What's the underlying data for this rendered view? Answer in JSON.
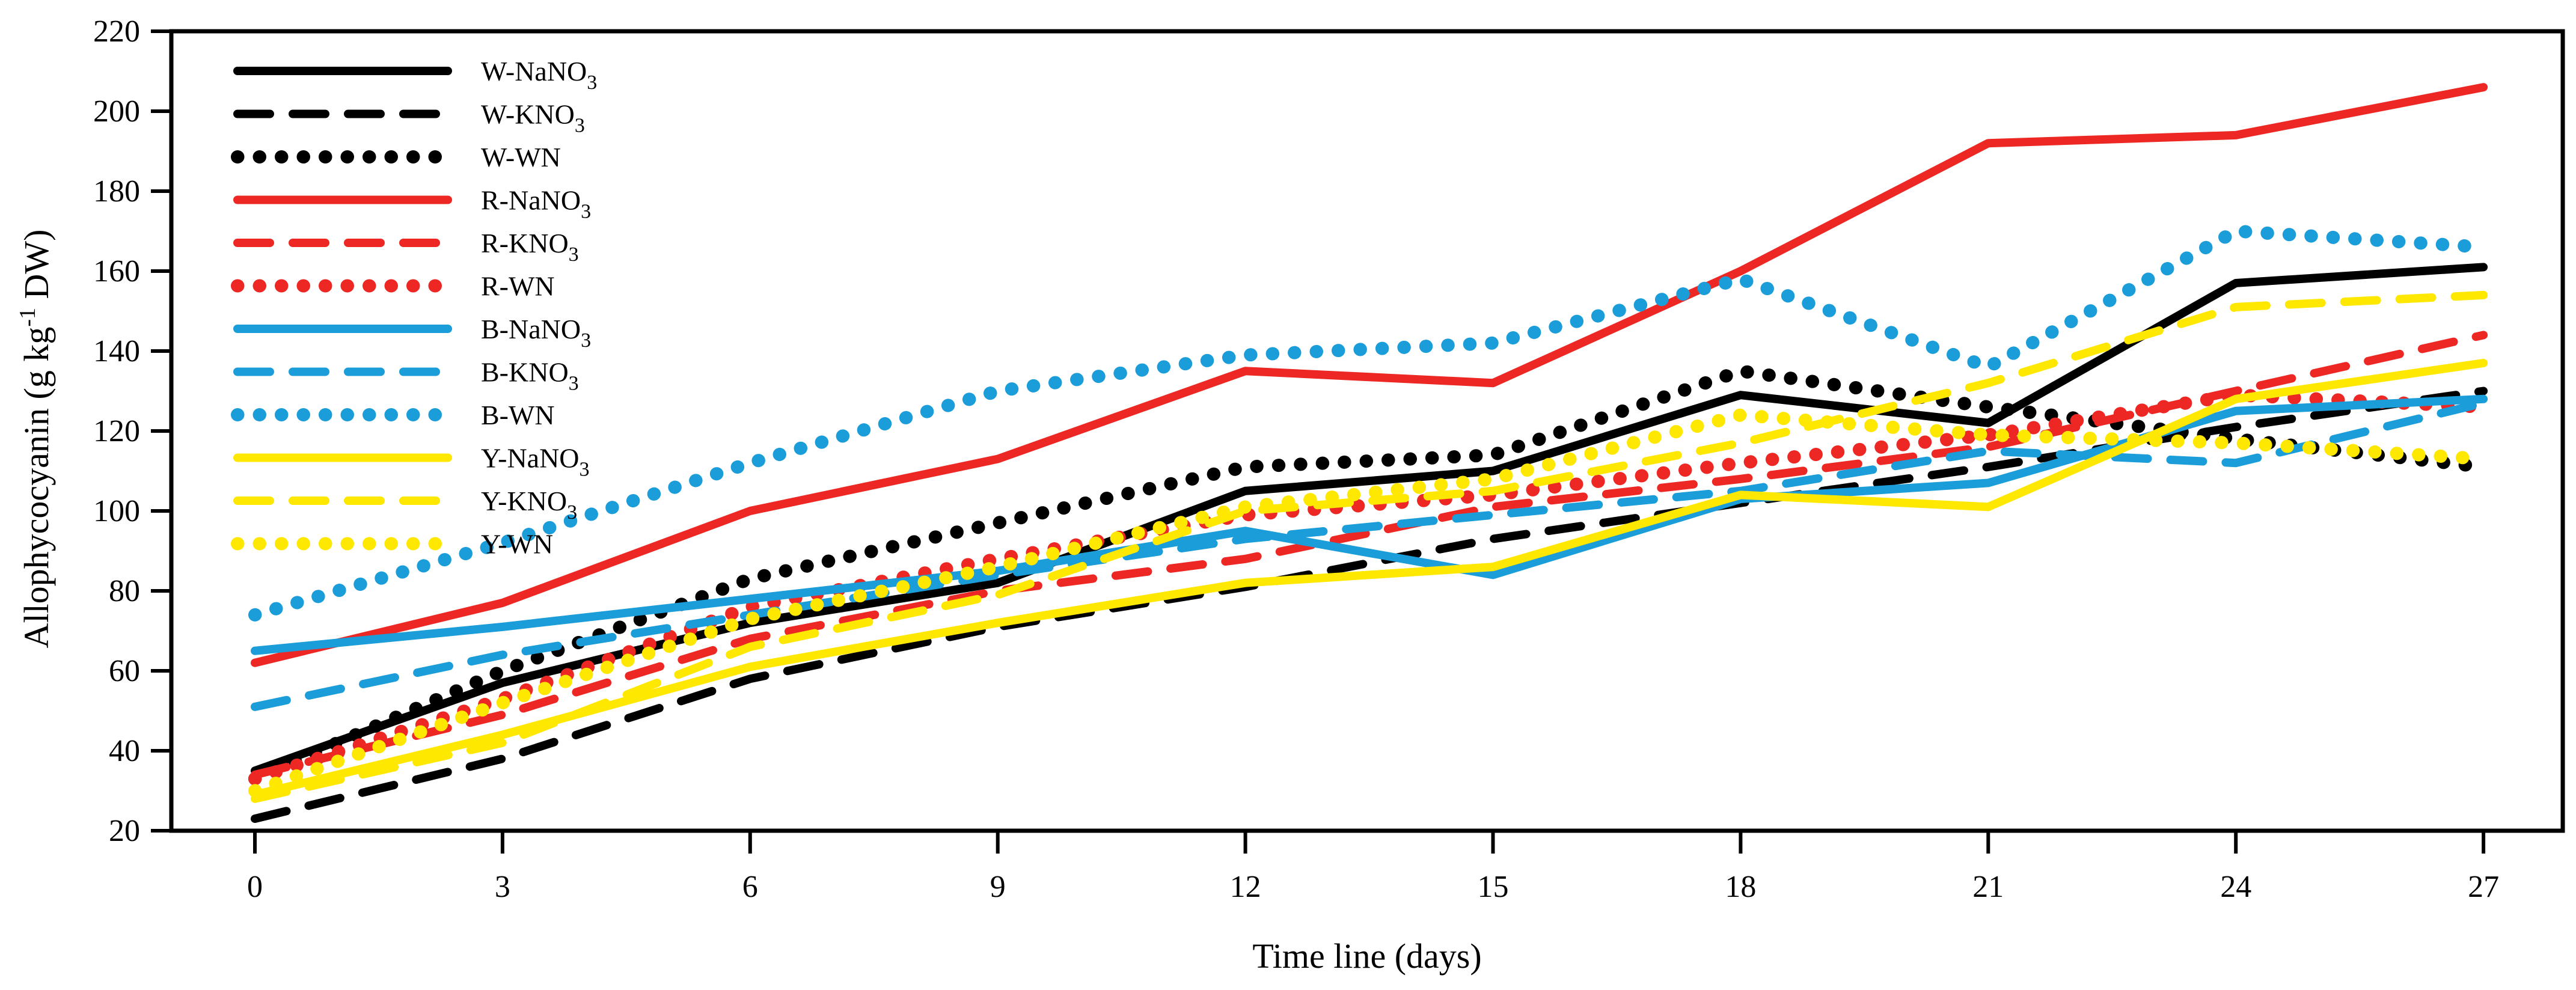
{
  "chart_data": {
    "type": "line",
    "title": "",
    "xlabel": "Time line (days)",
    "ylabel": "Allophycocyanin (g kg-1 DW)",
    "ylabel_parts": {
      "pre": "Allophycocyanin (g kg",
      "sup": "-1",
      "post": " DW)"
    },
    "x": [
      0,
      3,
      6,
      9,
      12,
      15,
      18,
      21,
      24,
      27
    ],
    "xticks": [
      "0",
      "3",
      "6",
      "9",
      "12",
      "15",
      "18",
      "21",
      "24",
      "27"
    ],
    "yticks": [
      "220",
      "200",
      "180",
      "160",
      "140",
      "120",
      "100",
      "80",
      "60",
      "40",
      "20"
    ],
    "ylim": [
      20,
      220
    ],
    "xlim": [
      0,
      27
    ],
    "grid": false,
    "legend_position": "upper-left-inside",
    "palette": {
      "black": "#000000",
      "red": "#ED2824",
      "blue": "#1B9DD9",
      "yellow": "#FFE800"
    },
    "series": [
      {
        "name": "W-NaNO3",
        "label_main": "W-NaNO",
        "label_sub": "3",
        "color": "black",
        "style": "solid",
        "values": [
          35,
          57,
          72,
          82,
          105,
          110,
          129,
          122,
          157,
          161
        ]
      },
      {
        "name": "W-KNO3",
        "label_main": "W-KNO",
        "label_sub": "3",
        "color": "black",
        "style": "dashed",
        "values": [
          23,
          38,
          58,
          71,
          81,
          93,
          102,
          111,
          121,
          130
        ]
      },
      {
        "name": "W-WN",
        "label_main": "W-WN",
        "label_sub": "",
        "color": "black",
        "style": "dotted",
        "values": [
          33,
          60,
          83,
          97,
          111,
          114,
          135,
          126,
          118,
          111
        ]
      },
      {
        "name": "R-NaNO3",
        "label_main": "R-NaNO",
        "label_sub": "3",
        "color": "red",
        "style": "solid",
        "values": [
          62,
          77,
          100,
          113,
          135,
          132,
          160,
          192,
          194,
          206
        ]
      },
      {
        "name": "R-KNO3",
        "label_main": "R-KNO",
        "label_sub": "3",
        "color": "red",
        "style": "dashed",
        "values": [
          34,
          49,
          68,
          80,
          88,
          101,
          108,
          116,
          130,
          144
        ]
      },
      {
        "name": "R-WN",
        "label_main": "R-WN",
        "label_sub": "",
        "color": "red",
        "style": "dotted",
        "values": [
          33,
          53,
          76,
          88,
          99,
          104,
          112,
          119,
          129,
          126
        ]
      },
      {
        "name": "B-NaNO3",
        "label_main": "B-NaNO",
        "label_sub": "3",
        "color": "blue",
        "style": "solid",
        "values": [
          65,
          71,
          78,
          85,
          95,
          84,
          103,
          107,
          125,
          128
        ]
      },
      {
        "name": "B-KNO3",
        "label_main": "B-KNO",
        "label_sub": "3",
        "color": "blue",
        "style": "dashed",
        "values": [
          51,
          64,
          74,
          84,
          93,
          99,
          105,
          115,
          112,
          127
        ]
      },
      {
        "name": "B-WN",
        "label_main": "B-WN",
        "label_sub": "",
        "color": "blue",
        "style": "dotted",
        "values": [
          74,
          92,
          112,
          130,
          139,
          142,
          158,
          136,
          170,
          166
        ]
      },
      {
        "name": "Y-NaNO3",
        "label_main": "Y-NaNO",
        "label_sub": "3",
        "color": "yellow",
        "style": "solid",
        "values": [
          29,
          44,
          61,
          72,
          82,
          86,
          104,
          101,
          128,
          137
        ]
      },
      {
        "name": "Y-KNO3",
        "label_main": "Y-KNO",
        "label_sub": "3",
        "color": "yellow",
        "style": "dashed",
        "values": [
          28,
          42,
          66,
          79,
          100,
          105,
          117,
          132,
          151,
          154
        ]
      },
      {
        "name": "Y-WN",
        "label_main": "Y-WN",
        "label_sub": "",
        "color": "yellow",
        "style": "dotted",
        "values": [
          30,
          52,
          73,
          86,
          101,
          108,
          124,
          119,
          117,
          113
        ]
      }
    ]
  }
}
